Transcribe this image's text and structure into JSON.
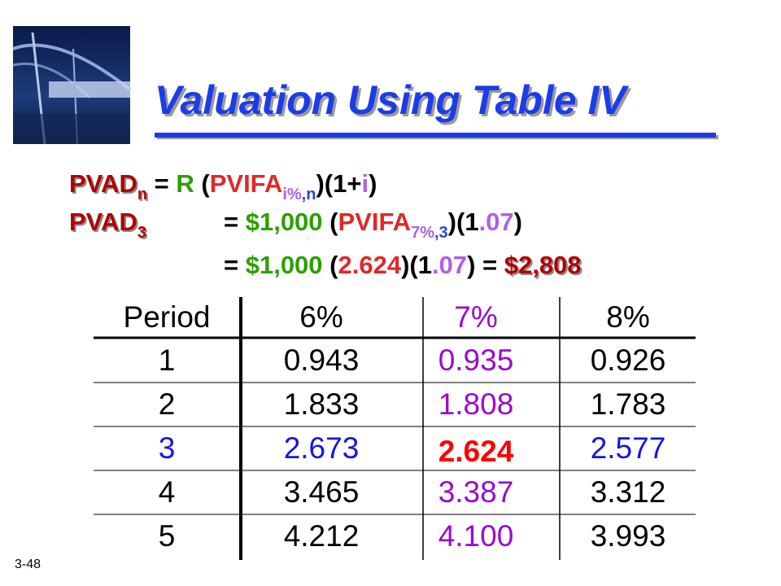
{
  "slide": {
    "title": "Valuation Using Table IV",
    "number": "3-48",
    "formulas": [
      [
        {
          "text": "PVAD",
          "color": "#b00000",
          "shadow": true
        },
        {
          "text": "n",
          "color": "#b00000",
          "sub": true,
          "shadow": true
        },
        {
          "text": " = ",
          "color": "#000000"
        },
        {
          "text": "R",
          "color": "#2e9e00"
        },
        {
          "text": " (",
          "color": "#000000"
        },
        {
          "text": "PVIFA",
          "color": "#e02828"
        },
        {
          "text": "i%",
          "color": "#b060e0",
          "sub": true
        },
        {
          "text": ",n",
          "color": "#2848d0",
          "sub": true
        },
        {
          "text": ")(1+",
          "color": "#000000"
        },
        {
          "text": "i",
          "color": "#b060e0"
        },
        {
          "text": ")",
          "color": "#000000"
        }
      ],
      [
        {
          "text": "PVAD",
          "color": "#b00000",
          "shadow": true
        },
        {
          "text": "3",
          "color": "#b00000",
          "sub": true,
          "shadow": true
        },
        {
          "text": "= ",
          "color": "#000000"
        },
        {
          "text": "$1,000",
          "color": "#2e9e00"
        },
        {
          "text": " (",
          "color": "#000000"
        },
        {
          "text": "PVIFA",
          "color": "#e02828"
        },
        {
          "text": "7%",
          "color": "#b060e0",
          "sub": true
        },
        {
          "text": ",3",
          "color": "#2848d0",
          "sub": true
        },
        {
          "text": ")(1",
          "color": "#000000"
        },
        {
          "text": ".07",
          "color": "#b060e0"
        },
        {
          "text": ")",
          "color": "#000000"
        }
      ],
      [
        {
          "text": "= ",
          "color": "#000000"
        },
        {
          "text": "$1,000",
          "color": "#2e9e00"
        },
        {
          "text": " (",
          "color": "#000000"
        },
        {
          "text": "2.624",
          "color": "#e02828"
        },
        {
          "text": ")(1",
          "color": "#000000"
        },
        {
          "text": ".07",
          "color": "#b060e0"
        },
        {
          "text": ") = ",
          "color": "#000000"
        },
        {
          "text": "$2,808",
          "color": "#b00000",
          "shadow": true
        }
      ]
    ]
  },
  "table": {
    "header": [
      "Period",
      "6%",
      "7%",
      "8%"
    ],
    "rows": [
      [
        "1",
        "0.943",
        "0.935",
        "0.926"
      ],
      [
        "2",
        "1.833",
        "1.808",
        "1.783"
      ],
      [
        "3",
        "2.673",
        "2.624",
        "2.577"
      ],
      [
        "4",
        "3.465",
        "3.387",
        "3.312"
      ],
      [
        "5",
        "4.212",
        "4.100",
        "3.993"
      ]
    ]
  }
}
